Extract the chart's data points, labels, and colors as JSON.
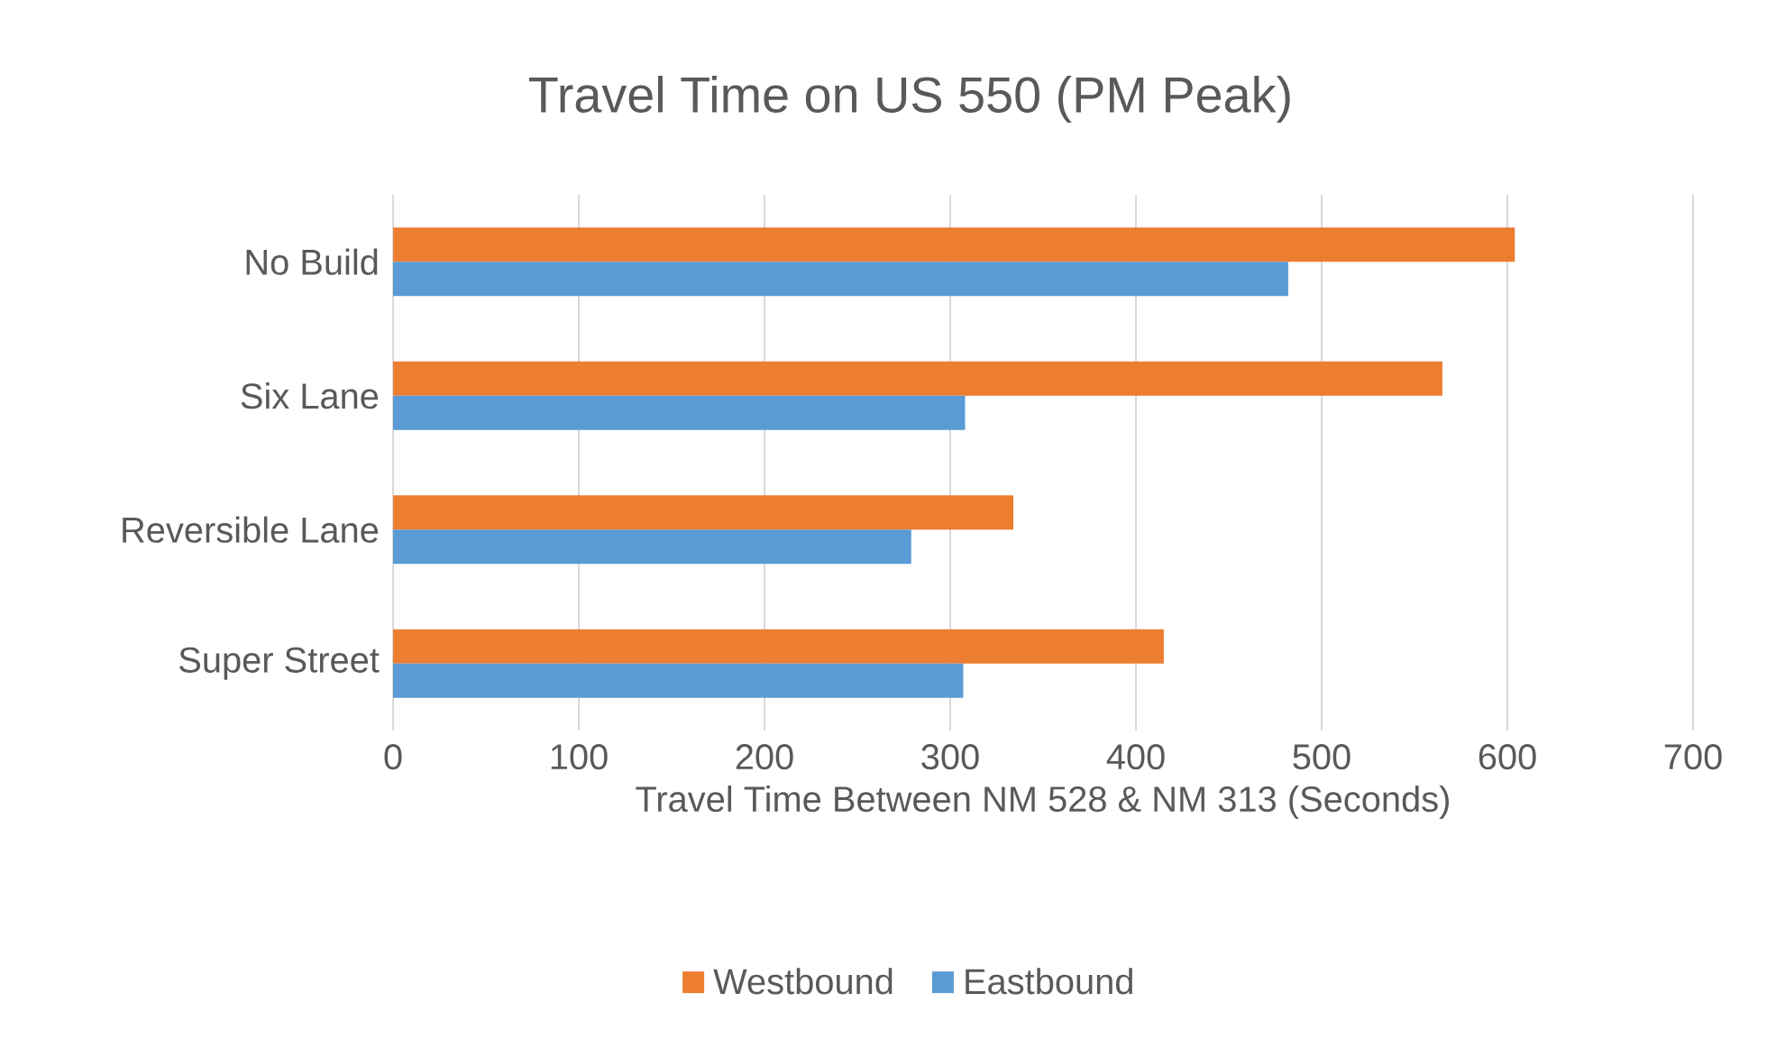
{
  "chart_data": {
    "type": "bar",
    "orientation": "horizontal",
    "title": "Travel Time on US 550 (PM Peak)",
    "xlabel": "Travel Time Between NM 528 & NM 313 (Seconds)",
    "categories": [
      "No Build",
      "Six Lane",
      "Reversible Lane",
      "Super Street"
    ],
    "series": [
      {
        "name": "Westbound",
        "color": "#ed7d31",
        "values": [
          604,
          565,
          334,
          415
        ]
      },
      {
        "name": "Eastbound",
        "color": "#5b9bd5",
        "values": [
          482,
          308,
          279,
          307
        ]
      }
    ],
    "xlim": [
      0,
      700
    ],
    "xticks": [
      0,
      100,
      200,
      300,
      400,
      500,
      600,
      700
    ],
    "grid": "x",
    "legend": "bottom"
  }
}
